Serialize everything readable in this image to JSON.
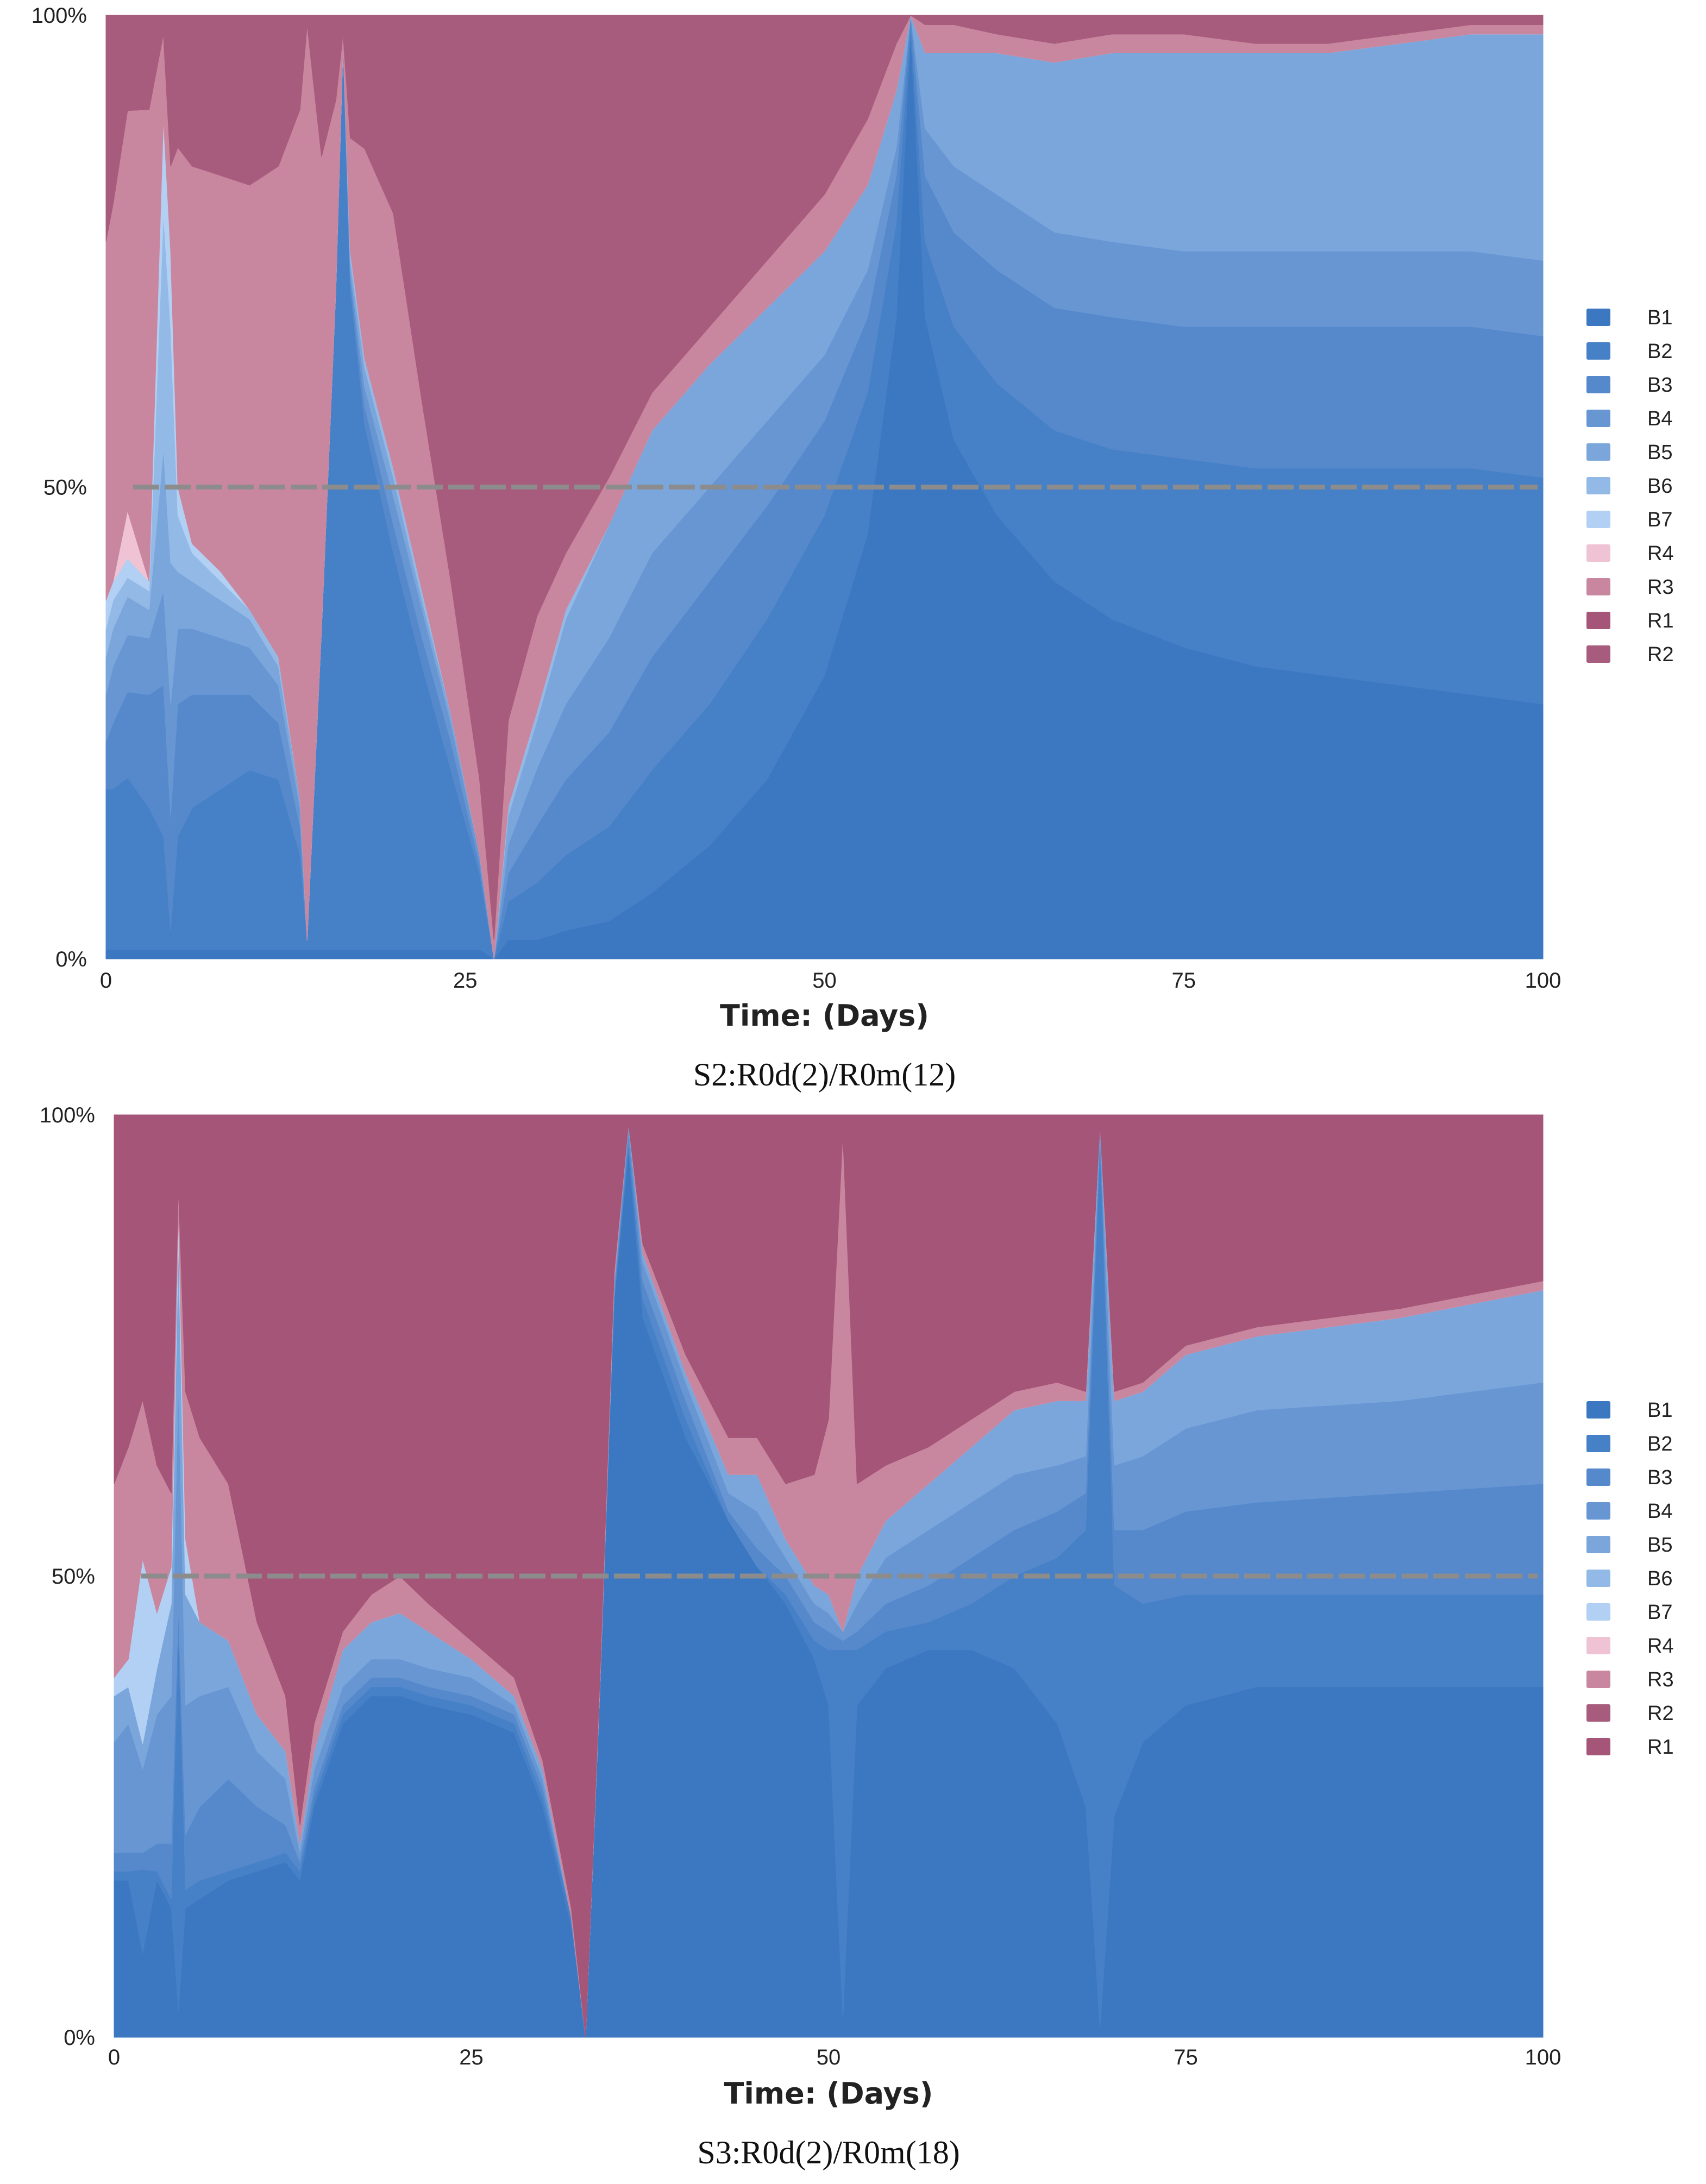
{
  "colors": {
    "B1": "#3b78c1",
    "B2": "#4680c6",
    "B3": "#5589cc",
    "B4": "#6796d3",
    "B5": "#7aa6dc",
    "B6": "#93b9e6",
    "B7": "#b2d0f3",
    "R4": "#efc3d4",
    "R3": "#c9869f",
    "R2": "#a85c7d",
    "R1": "#a55577",
    "reference": "#8c8c8c"
  },
  "chart_data": [
    {
      "type": "area",
      "stacked": "percent",
      "title": "",
      "caption": "S2:R0d(2)/R0m(12)",
      "xlabel": "Time: (Days)",
      "ylabel": "",
      "xlim": [
        0,
        100
      ],
      "ylim": [
        0,
        100
      ],
      "x_ticks": [
        "0",
        "25",
        "50",
        "75",
        "100"
      ],
      "y_ticks": [
        "0%",
        "50%",
        "100%"
      ],
      "reference_line": 50,
      "legend": [
        "B1",
        "B2",
        "B3",
        "B4",
        "B5",
        "B6",
        "B7",
        "R4",
        "R3",
        "R1",
        "R2"
      ],
      "x": [
        0,
        0.5,
        1.5,
        3,
        4,
        4.5,
        5,
        6,
        8,
        10,
        12,
        13.5,
        14,
        15,
        16,
        16.5,
        17,
        18,
        20,
        22,
        24,
        26,
        27,
        28,
        30,
        32,
        35,
        38,
        42,
        46,
        50,
        53,
        55,
        56,
        57,
        59,
        62,
        66,
        70,
        75,
        80,
        85,
        90,
        95,
        100
      ],
      "series": [
        {
          "name": "B1",
          "values": [
            1,
            1,
            1,
            1,
            1,
            1,
            1,
            1,
            1,
            1,
            1,
            1,
            1,
            1,
            1,
            1,
            1,
            1,
            1,
            1,
            1,
            1,
            0,
            2,
            2,
            3,
            4,
            7,
            12,
            19,
            30,
            45,
            68,
            98,
            68,
            55,
            47,
            40,
            36,
            33,
            31,
            30,
            29,
            28,
            27
          ]
        },
        {
          "name": "B2",
          "values": [
            17,
            17,
            18,
            15,
            12,
            2,
            12,
            15,
            17,
            19,
            18,
            10,
            1,
            34,
            70,
            96,
            70,
            55,
            42,
            30,
            19,
            8,
            0,
            4,
            6,
            8,
            10,
            13,
            15,
            17,
            17,
            15,
            10,
            1,
            8,
            12,
            14,
            16,
            18,
            20,
            21,
            22,
            23,
            24,
            24
          ]
        },
        {
          "name": "B3",
          "values": [
            5,
            7,
            9,
            12,
            16,
            12,
            14,
            12,
            10,
            8,
            6,
            3,
            0,
            0,
            0,
            0,
            1,
            2,
            3,
            3,
            3,
            1,
            0,
            3,
            6,
            8,
            10,
            12,
            13,
            12,
            10,
            8,
            5,
            1,
            7,
            10,
            12,
            13,
            14,
            14,
            15,
            15,
            15,
            15,
            15
          ]
        },
        {
          "name": "B4",
          "values": [
            5,
            6,
            6,
            6,
            10,
            12,
            8,
            7,
            6,
            5,
            4,
            2,
            0,
            0,
            0,
            0,
            1,
            2,
            3,
            3,
            2,
            1,
            0,
            3,
            6,
            8,
            10,
            11,
            10,
            9,
            7,
            5,
            3,
            0,
            5,
            7,
            8,
            8,
            8,
            8,
            8,
            8,
            8,
            8,
            8
          ]
        },
        {
          "name": "B5",
          "values": [
            4,
            4,
            4,
            3,
            15,
            15,
            6,
            5,
            4,
            3,
            2,
            1,
            0,
            0,
            0,
            0,
            1,
            2,
            2,
            1,
            1,
            0,
            0,
            3,
            5,
            9,
            12,
            13,
            13,
            12,
            11,
            9,
            6,
            0,
            8,
            12,
            15,
            18,
            20,
            21,
            21,
            21,
            22,
            23,
            24
          ]
        },
        {
          "name": "B6",
          "values": [
            3,
            3,
            2,
            2,
            25,
            25,
            6,
            3,
            2,
            1,
            1,
            0,
            0,
            0,
            0,
            0,
            1,
            1,
            1,
            1,
            0,
            0,
            0,
            1,
            1,
            1,
            0,
            0,
            0,
            0,
            0,
            0,
            0,
            0,
            0,
            0,
            0,
            0,
            0,
            0,
            0,
            0,
            0,
            0,
            0
          ]
        },
        {
          "name": "B7",
          "values": [
            3,
            2,
            2,
            1,
            10,
            8,
            3,
            1,
            1,
            0,
            0,
            0,
            0,
            0,
            0,
            0,
            0,
            0,
            0,
            0,
            0,
            0,
            0,
            0,
            0,
            0,
            0,
            0,
            0,
            0,
            0,
            0,
            0,
            0,
            0,
            0,
            0,
            0,
            0,
            0,
            0,
            0,
            0,
            0,
            0
          ]
        },
        {
          "name": "R4",
          "values": [
            0,
            0,
            5,
            0,
            0,
            0,
            0,
            0,
            0,
            0,
            0,
            0,
            0,
            0,
            0,
            0,
            0,
            0,
            0,
            0,
            0,
            0,
            0,
            0,
            0,
            0,
            0,
            0,
            0,
            0,
            0,
            0,
            0,
            0,
            0,
            0,
            0,
            0,
            0,
            0,
            0,
            0,
            0,
            0,
            0
          ]
        },
        {
          "name": "R3",
          "values": [
            38,
            40,
            42,
            50,
            9,
            9,
            36,
            40,
            42,
            45,
            52,
            73,
            98,
            50,
            20,
            1,
            12,
            22,
            27,
            20,
            14,
            8,
            2,
            9,
            10,
            6,
            5,
            4,
            4,
            5,
            6,
            7,
            5,
            0,
            3,
            3,
            2,
            2,
            2,
            2,
            1,
            1,
            1,
            1,
            1
          ]
        },
        {
          "name": "R1",
          "values": [
            0,
            0,
            0,
            0,
            0,
            0,
            0,
            0,
            0,
            0,
            0,
            0,
            0,
            0,
            0,
            0,
            0,
            0,
            0,
            0,
            0,
            0,
            0,
            0,
            0,
            0,
            0,
            0,
            0,
            0,
            0,
            0,
            0,
            0,
            0,
            0,
            0,
            0,
            0,
            0,
            0,
            0,
            0,
            0,
            0
          ]
        },
        {
          "name": "R2",
          "values": [
            24,
            20,
            10,
            10,
            2,
            16,
            14,
            16,
            17,
            18,
            16,
            10,
            1,
            15,
            9,
            2,
            13,
            14,
            21,
            41,
            60,
            81,
            98,
            74,
            63,
            57,
            49,
            40,
            33,
            26,
            19,
            11,
            3,
            0,
            1,
            1,
            2,
            3,
            2,
            2,
            3,
            3,
            2,
            1,
            1
          ]
        }
      ]
    },
    {
      "type": "area",
      "stacked": "percent",
      "title": "",
      "caption": "S3:R0d(2)/R0m(18)",
      "xlabel": "Time: (Days)",
      "ylabel": "",
      "xlim": [
        0,
        100
      ],
      "ylim": [
        0,
        100
      ],
      "x_ticks": [
        "0",
        "25",
        "50",
        "75",
        "100"
      ],
      "y_ticks": [
        "0%",
        "50%",
        "100%"
      ],
      "reference_line": 50,
      "legend": [
        "B1",
        "B2",
        "B3",
        "B4",
        "B5",
        "B6",
        "B7",
        "R4",
        "R3",
        "R2",
        "R1"
      ],
      "x": [
        0,
        1,
        2,
        3,
        4,
        4.5,
        5,
        6,
        8,
        10,
        12,
        13,
        14,
        16,
        18,
        20,
        22,
        25,
        28,
        30,
        32,
        33,
        34,
        35,
        36,
        37,
        40,
        43,
        45,
        47,
        49,
        50,
        51,
        52,
        54,
        57,
        60,
        63,
        66,
        68,
        69,
        70,
        72,
        75,
        80,
        90,
        100
      ],
      "series": [
        {
          "name": "B1",
          "values": [
            17,
            17,
            10,
            17,
            14,
            3,
            14,
            15,
            17,
            18,
            19,
            17,
            25,
            34,
            37,
            37,
            36,
            35,
            33,
            25,
            12,
            0,
            38,
            80,
            97,
            78,
            65,
            56,
            51,
            47,
            41,
            36,
            2,
            36,
            40,
            42,
            42,
            40,
            34,
            25,
            1,
            24,
            32,
            36,
            38,
            38,
            38
          ]
        },
        {
          "name": "B2",
          "values": [
            1,
            1,
            10,
            1,
            1,
            42,
            2,
            2,
            1,
            1,
            1,
            1,
            1,
            1,
            1,
            1,
            1,
            1,
            1,
            1,
            1,
            0,
            0,
            0,
            1,
            2,
            2,
            0,
            0,
            1,
            2,
            6,
            40,
            6,
            4,
            3,
            5,
            10,
            18,
            30,
            97,
            25,
            15,
            12,
            10,
            10,
            10
          ]
        },
        {
          "name": "B3",
          "values": [
            2,
            2,
            2,
            3,
            6,
            3,
            6,
            8,
            10,
            6,
            3,
            1,
            1,
            1,
            1,
            1,
            1,
            1,
            1,
            1,
            0,
            0,
            0,
            1,
            1,
            2,
            2,
            1,
            2,
            2,
            2,
            2,
            1,
            2,
            3,
            4,
            5,
            5,
            5,
            4,
            1,
            6,
            8,
            9,
            10,
            11,
            12
          ]
        },
        {
          "name": "B4",
          "values": [
            12,
            14,
            10,
            14,
            16,
            25,
            14,
            12,
            10,
            6,
            5,
            1,
            2,
            2,
            2,
            2,
            2,
            2,
            1,
            1,
            0,
            0,
            0,
            1,
            1,
            2,
            2,
            2,
            4,
            2,
            2,
            2,
            1,
            3,
            5,
            6,
            6,
            6,
            5,
            4,
            1,
            7,
            8,
            9,
            10,
            10,
            11
          ]
        },
        {
          "name": "B5",
          "values": [
            5,
            4,
            3,
            5,
            10,
            16,
            12,
            8,
            5,
            4,
            3,
            1,
            2,
            4,
            4,
            5,
            4,
            2,
            1,
            1,
            0,
            0,
            0,
            0,
            0,
            1,
            1,
            2,
            4,
            2,
            2,
            2,
            0,
            3,
            4,
            5,
            6,
            7,
            7,
            6,
            0,
            7,
            7,
            8,
            8,
            9,
            10
          ]
        },
        {
          "name": "B6",
          "values": [
            0,
            0,
            0,
            0,
            0,
            0,
            0,
            0,
            0,
            0,
            0,
            0,
            0,
            0,
            0,
            0,
            0,
            0,
            0,
            0,
            0,
            0,
            0,
            0,
            0,
            0,
            0,
            0,
            0,
            0,
            0,
            0,
            0,
            0,
            0,
            0,
            0,
            0,
            0,
            0,
            0,
            0,
            0,
            0,
            0,
            0,
            0
          ]
        },
        {
          "name": "B7",
          "values": [
            2,
            3,
            22,
            6,
            4,
            3,
            6,
            0,
            0,
            0,
            0,
            0,
            0,
            0,
            0,
            0,
            0,
            0,
            0,
            0,
            0,
            0,
            0,
            0,
            0,
            0,
            0,
            0,
            0,
            0,
            0,
            0,
            0,
            0,
            0,
            0,
            0,
            0,
            0,
            0,
            0,
            0,
            0,
            0,
            0,
            0,
            0
          ]
        },
        {
          "name": "R4",
          "values": [
            0,
            0,
            0,
            0,
            0,
            0,
            0,
            0,
            0,
            0,
            0,
            0,
            0,
            0,
            0,
            0,
            0,
            0,
            0,
            0,
            0,
            0,
            0,
            0,
            0,
            0,
            0,
            0,
            0,
            0,
            0,
            0,
            0,
            0,
            0,
            0,
            0,
            0,
            0,
            0,
            0,
            0,
            0,
            0,
            0,
            0,
            0
          ]
        },
        {
          "name": "R3",
          "values": [
            21,
            23,
            19,
            16,
            8,
            3,
            16,
            20,
            17,
            10,
            6,
            2,
            3,
            2,
            3,
            4,
            3,
            2,
            2,
            1,
            1,
            0,
            1,
            1,
            0,
            1,
            2,
            4,
            4,
            6,
            12,
            19,
            54,
            10,
            6,
            4,
            3,
            2,
            2,
            1,
            0,
            1,
            1,
            1,
            1,
            1,
            1
          ]
        },
        {
          "name": "R2",
          "values": [
            0,
            0,
            0,
            0,
            0,
            0,
            0,
            0,
            0,
            0,
            0,
            0,
            0,
            0,
            0,
            0,
            0,
            0,
            0,
            0,
            0,
            0,
            0,
            0,
            0,
            0,
            0,
            0,
            0,
            0,
            0,
            0,
            0,
            0,
            0,
            0,
            0,
            0,
            0,
            0,
            0,
            0,
            0,
            0,
            0,
            0,
            0
          ]
        },
        {
          "name": "R1",
          "values": [
            40,
            36,
            34,
            38,
            41,
            8,
            30,
            35,
            40,
            55,
            63,
            77,
            66,
            56,
            52,
            50,
            53,
            57,
            61,
            70,
            86,
            100,
            61,
            17,
            1,
            14,
            26,
            35,
            35,
            40,
            39,
            33,
            2,
            40,
            38,
            36,
            33,
            30,
            29,
            30,
            1,
            30,
            29,
            25,
            23,
            21,
            18
          ]
        }
      ]
    }
  ]
}
